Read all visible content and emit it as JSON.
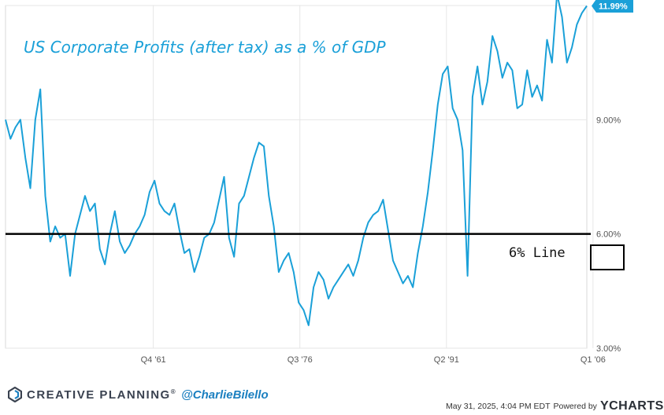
{
  "chart_data": {
    "type": "line",
    "title": "US Corporate Profits (after tax) as a % of GDP",
    "xlabel": "",
    "ylabel": "",
    "x_ticks": [
      "Q4 '61",
      "Q3 '76",
      "Q2 '91",
      "Q1 '06"
    ],
    "y_ticks": [
      "3.00%",
      "6.00%",
      "9.00%"
    ],
    "ylim": [
      3.0,
      12.0
    ],
    "grid": true,
    "series": [
      {
        "color": "#1aa0d8",
        "start_year": 1947.0,
        "step": 0.5,
        "values": [
          9.0,
          8.5,
          8.8,
          9.0,
          8.0,
          7.2,
          9.0,
          9.8,
          7.0,
          5.8,
          6.2,
          5.9,
          6.0,
          4.9,
          6.0,
          6.5,
          7.0,
          6.6,
          6.8,
          5.6,
          5.2,
          6.0,
          6.6,
          5.8,
          5.5,
          5.7,
          6.0,
          6.2,
          6.5,
          7.1,
          7.4,
          6.8,
          6.6,
          6.5,
          6.8,
          6.1,
          5.5,
          5.6,
          5.0,
          5.4,
          5.9,
          6.0,
          6.3,
          6.9,
          7.5,
          5.9,
          5.4,
          6.8,
          7.0,
          7.5,
          8.0,
          8.4,
          8.3,
          7.0,
          6.2,
          5.0,
          5.3,
          5.5,
          5.0,
          4.2,
          4.0,
          3.6,
          4.6,
          5.0,
          4.8,
          4.3,
          4.6,
          4.8,
          5.0,
          5.2,
          4.9,
          5.3,
          5.9,
          6.3,
          6.5,
          6.6,
          6.9,
          6.1,
          5.3,
          5.0,
          4.7,
          4.9,
          4.6,
          5.5,
          6.2,
          7.1,
          8.2,
          9.4,
          10.2,
          10.4,
          9.3,
          9.0,
          8.2,
          4.9,
          9.6,
          10.4,
          9.4,
          10.0,
          11.2,
          10.8,
          10.1,
          10.5,
          10.3,
          9.3,
          9.4,
          10.3,
          9.6,
          9.9,
          9.5,
          11.1,
          10.5,
          12.3,
          11.7,
          10.5,
          10.9,
          11.5,
          11.8,
          11.99
        ]
      }
    ],
    "last_value_label": "11.99%",
    "reference_line": {
      "value": 6.0,
      "label": "6% Line",
      "highlight_tick": "6.00%"
    }
  },
  "footer": {
    "brand_name": "CREATIVE PLANNING",
    "brand_reg": "®",
    "handle": "@CharlieBilello",
    "timestamp": "May 31, 2025, 4:04 PM EDT",
    "powered_by": "Powered by",
    "ycharts_y": "Y",
    "ycharts_rest": "CHARTS"
  },
  "colors": {
    "line": "#1aa0d8",
    "title": "#1aa0d8",
    "reference": "#000000",
    "grid": "#e6e6e6"
  }
}
